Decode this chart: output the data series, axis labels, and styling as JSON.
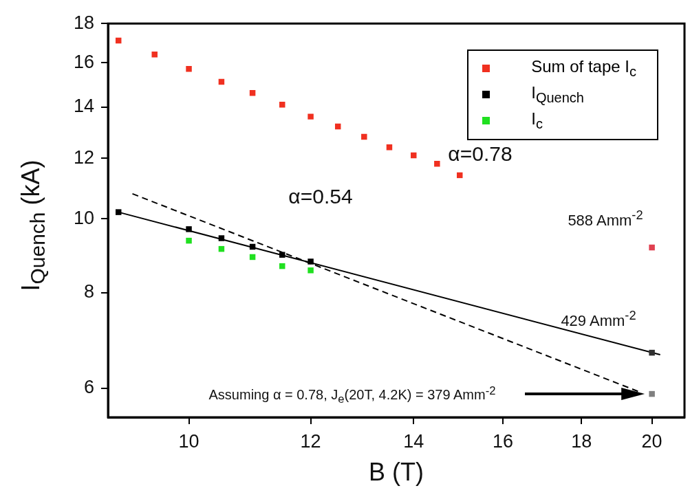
{
  "chart_data": {
    "type": "scatter",
    "xlabel": "B (T)",
    "ylabel": "I$_{Quench}$ (kA)",
    "log": "xy",
    "xlim": [
      8.86,
      21
    ],
    "ylim": [
      5.5,
      18
    ],
    "xticks": [
      10,
      12,
      14,
      16,
      18,
      20
    ],
    "yticks": [
      6,
      8,
      10,
      12,
      14,
      16,
      18
    ],
    "grid": false,
    "legend": "top right",
    "marker": "square",
    "series": [
      {
        "name": "Sum of tape I$_{c}$",
        "color": "#f03020",
        "x": [
          9,
          9.5,
          10,
          10.5,
          11,
          11.5,
          12,
          12.5,
          13,
          13.5,
          14,
          14.5,
          15
        ],
        "values": [
          17.1,
          16.4,
          15.7,
          15.1,
          14.6,
          14.1,
          13.6,
          13.2,
          12.8,
          12.4,
          12.1,
          11.8,
          11.4
        ]
      },
      {
        "name": "I$_{Quench}$",
        "color": "#000000",
        "x": [
          9,
          10,
          10.5,
          11,
          11.5,
          12
        ],
        "values": [
          10.2,
          9.69,
          9.43,
          9.19,
          8.97,
          8.79
        ]
      },
      {
        "name": "I$_{c}$",
        "color": "#20e020",
        "x": [
          10,
          10.5,
          11,
          11.5,
          12
        ],
        "values": [
          9.36,
          9.13,
          8.91,
          8.67,
          8.56
        ]
      },
      {
        "color": "#e04050",
        "x": [
          20
        ],
        "values": [
          9.17
        ]
      },
      {
        "color": "#303030",
        "x": [
          20
        ],
        "values": [
          6.68
        ]
      },
      {
        "color": "#808080",
        "x": [
          20
        ],
        "values": [
          5.9
        ]
      },
      {
        "type": "line",
        "color": "#000000",
        "line_style": "solid",
        "marker": "none",
        "x": [
          9,
          20.25
        ],
        "values": [
          10.2,
          6.64
        ]
      },
      {
        "type": "line",
        "color": "#000000",
        "line_style": "dashed",
        "marker": "none",
        "x": [
          9.19,
          19.7
        ],
        "values": [
          10.78,
          5.92
        ]
      }
    ],
    "annotations": [
      "α=0.78",
      "α=0.54",
      "588 Amm$^{-2}$",
      "429 Amm$^{-2}$",
      "Assuming α = 0.78, J$_{e}$(20T, 4.2K) = 379 Amm$^{-2}$"
    ]
  }
}
